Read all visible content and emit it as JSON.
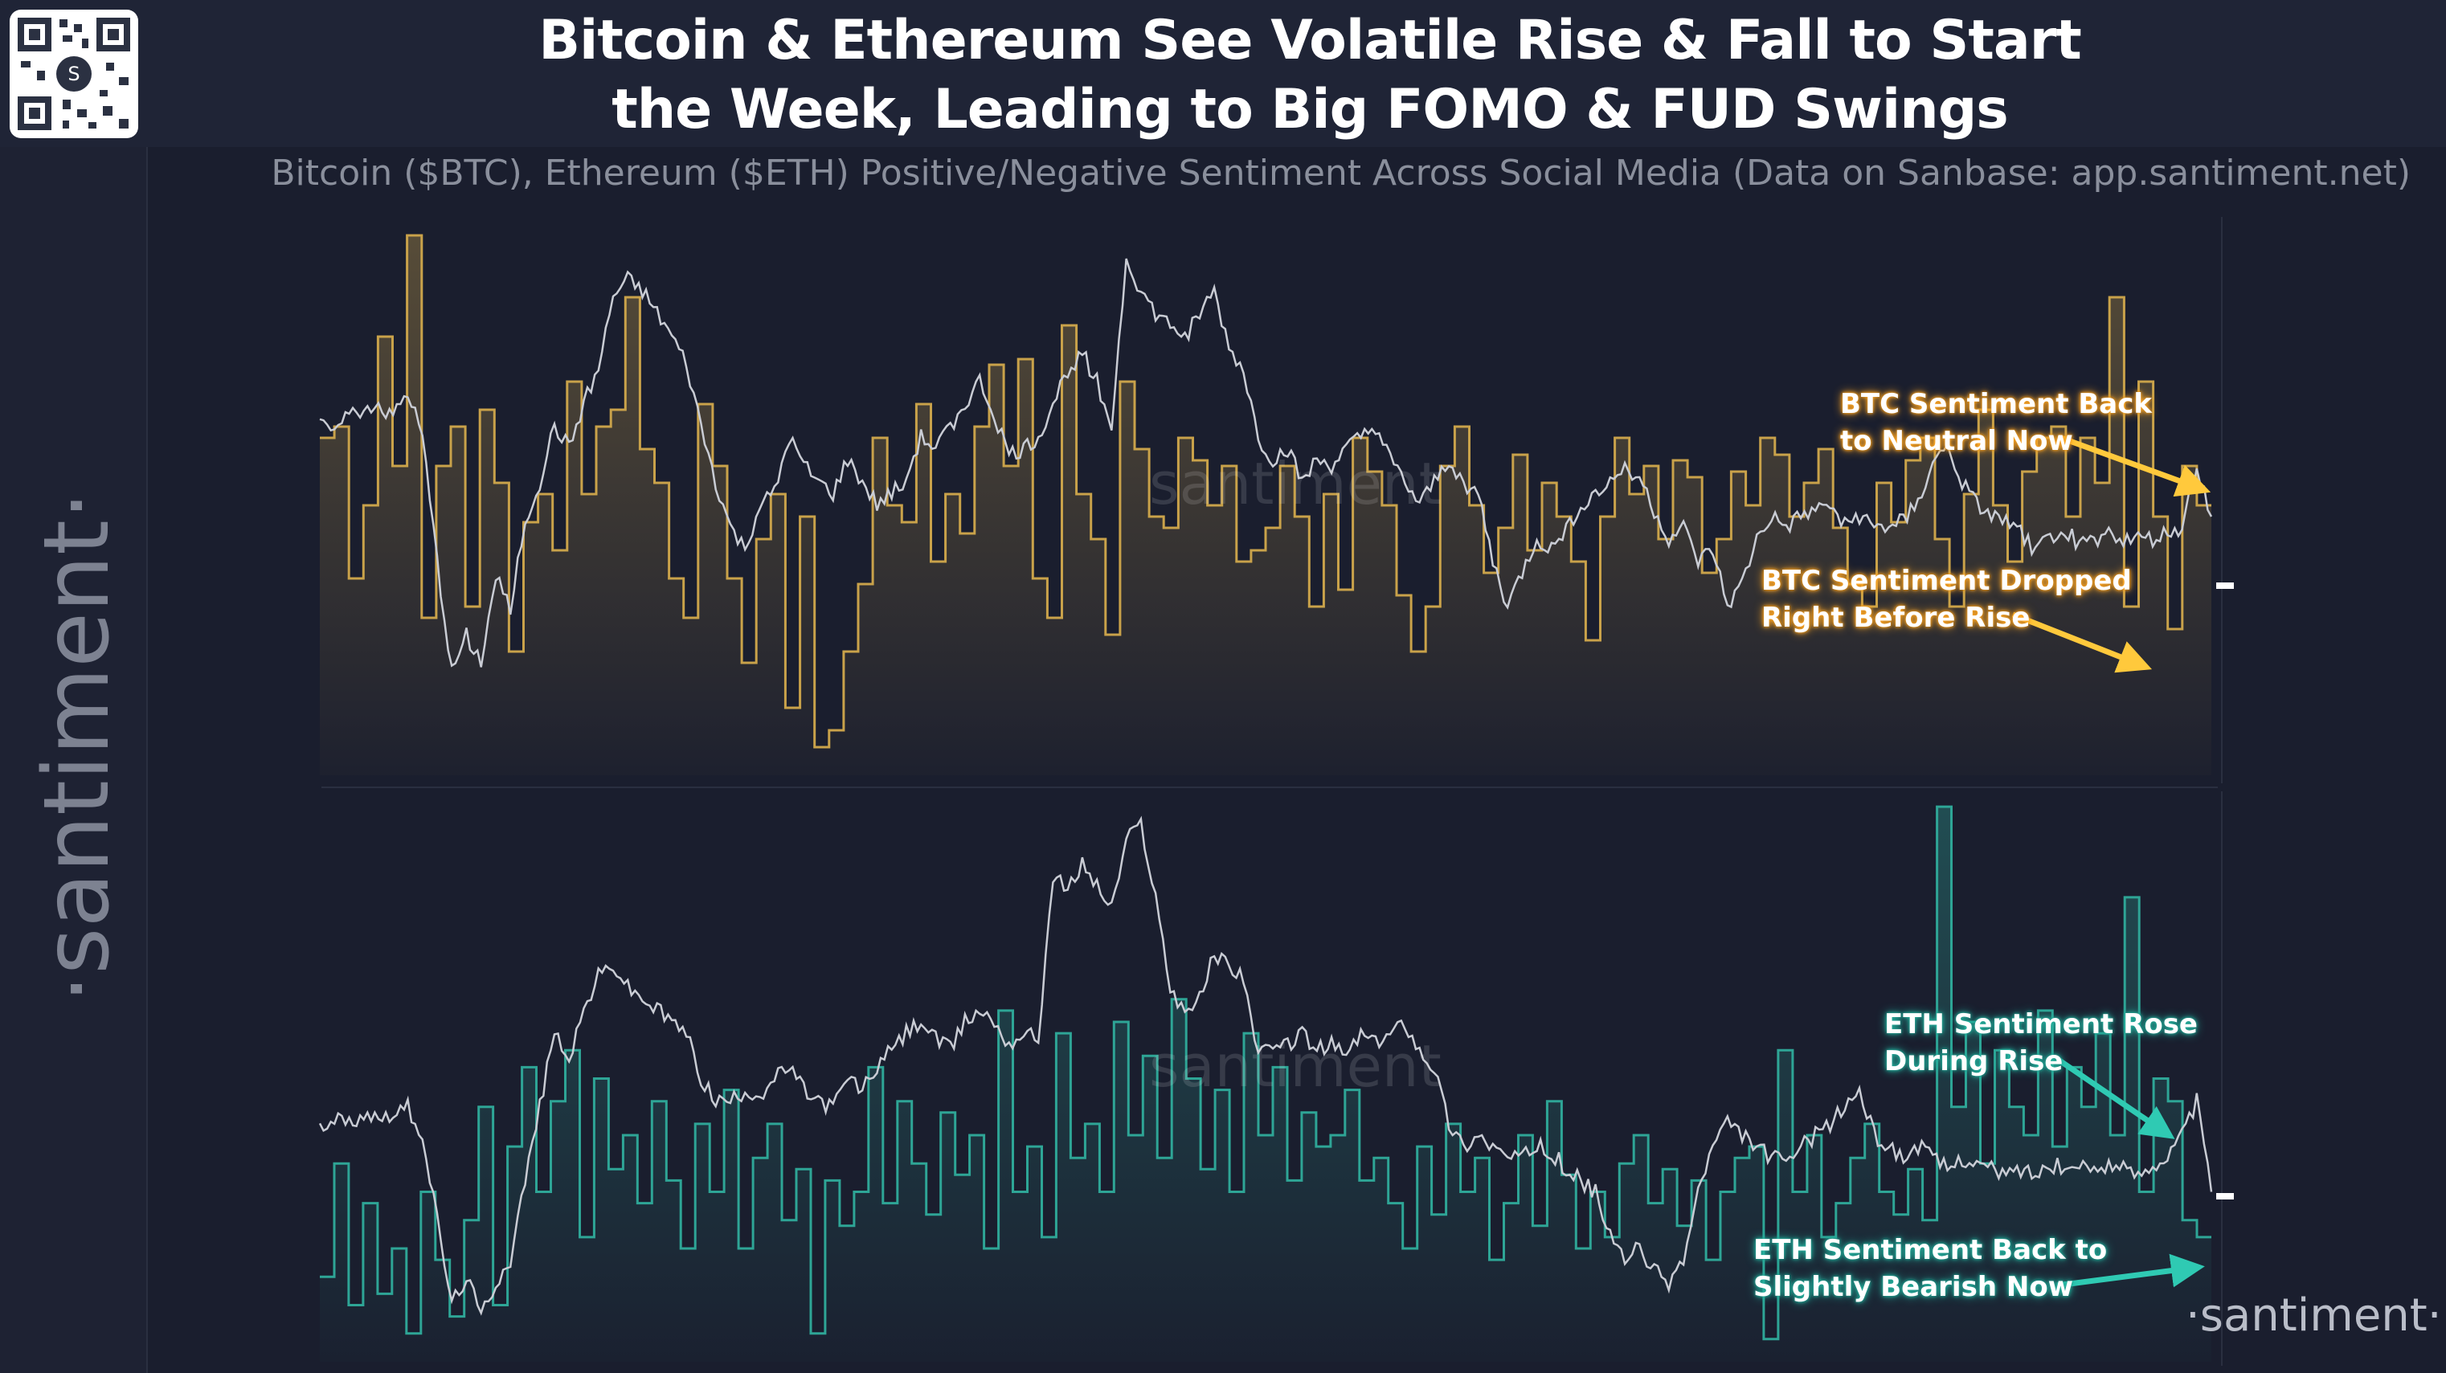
{
  "header": {
    "title": "Bitcoin & Ethereum See Volatile Rise & Fall to Start\nthe Week, Leading to Big FOMO & FUD Swings",
    "subtitle": "Bitcoin ($BTC), Ethereum ($ETH) Positive/Negative Sentiment Across Social Media (Data on Sanbase: app.santiment.net)"
  },
  "branding": {
    "side_text": "·santiment·",
    "corner_text": "·santiment·",
    "watermark": "santiment",
    "qr_center": "S"
  },
  "annotations": {
    "btc_neutral": "BTC Sentiment Back\nto Neutral Now",
    "btc_dropped": "BTC Sentiment Dropped\nRight Before Rise",
    "eth_rose": "ETH Sentiment Rose\nDuring Rise",
    "eth_bearish": "ETH Sentiment Back to\nSlightly Bearish Now"
  },
  "colors": {
    "background": "#1a1e2e",
    "btc_sentiment": "#c9a24a",
    "eth_sentiment": "#2ea596",
    "price_line": "#c9ccd4",
    "btc_arrow": "#ffc93c",
    "eth_arrow": "#2fcab3"
  },
  "chart_data": [
    {
      "type": "line",
      "title": "",
      "series": [
        {
          "values": [
            0.6,
            0.62,
            0.35,
            0.48,
            0.78,
            0.55,
            0.96,
            0.28,
            0.55,
            0.62,
            0.3,
            0.65,
            0.52,
            0.22,
            0.45,
            0.5,
            0.4,
            0.7,
            0.5,
            0.62,
            0.65,
            0.85,
            0.58,
            0.52,
            0.35,
            0.28,
            0.66,
            0.55,
            0.35,
            0.2,
            0.42,
            0.5,
            0.12,
            0.46,
            0.05,
            0.08,
            0.22,
            0.34,
            0.6,
            0.48,
            0.45,
            0.66,
            0.38,
            0.5,
            0.43,
            0.62,
            0.73,
            0.55,
            0.74,
            0.35,
            0.28,
            0.8,
            0.5,
            0.42,
            0.25,
            0.7,
            0.58,
            0.46,
            0.44,
            0.6,
            0.56,
            0.48,
            0.55,
            0.38,
            0.4,
            0.44,
            0.55,
            0.46,
            0.3,
            0.5,
            0.33,
            0.6,
            0.54,
            0.48,
            0.32,
            0.22,
            0.3,
            0.55,
            0.62,
            0.48,
            0.36,
            0.44,
            0.57,
            0.4,
            0.52,
            0.46,
            0.38,
            0.24,
            0.46,
            0.6,
            0.5,
            0.55,
            0.42,
            0.56,
            0.53,
            0.36,
            0.42,
            0.54,
            0.48,
            0.6,
            0.57,
            0.46,
            0.52,
            0.58,
            0.44,
            0.34,
            0.3,
            0.52,
            0.45,
            0.56,
            0.6,
            0.42,
            0.3,
            0.5,
            0.65,
            0.48,
            0.38,
            0.54,
            0.6,
            0.62,
            0.46,
            0.6,
            0.52,
            0.85,
            0.3,
            0.7,
            0.46,
            0.26,
            0.55,
            0.48
          ]
        },
        {
          "values": [
            0.62,
            0.63,
            0.64,
            0.65,
            0.66,
            0.64,
            0.68,
            0.6,
            0.38,
            0.18,
            0.25,
            0.2,
            0.35,
            0.3,
            0.45,
            0.52,
            0.62,
            0.58,
            0.66,
            0.72,
            0.85,
            0.88,
            0.86,
            0.82,
            0.78,
            0.73,
            0.62,
            0.52,
            0.44,
            0.4,
            0.48,
            0.5,
            0.6,
            0.55,
            0.52,
            0.5,
            0.56,
            0.52,
            0.48,
            0.5,
            0.53,
            0.6,
            0.58,
            0.62,
            0.66,
            0.7,
            0.64,
            0.57,
            0.58,
            0.6,
            0.66,
            0.72,
            0.75,
            0.7,
            0.62,
            0.92,
            0.86,
            0.82,
            0.8,
            0.78,
            0.82,
            0.86,
            0.76,
            0.72,
            0.6,
            0.56,
            0.58,
            0.52,
            0.56,
            0.55,
            0.58,
            0.6,
            0.62,
            0.56,
            0.52,
            0.48,
            0.52,
            0.56,
            0.52,
            0.5,
            0.38,
            0.3,
            0.36,
            0.42,
            0.4,
            0.44,
            0.48,
            0.5,
            0.52,
            0.55,
            0.53,
            0.47,
            0.42,
            0.44,
            0.38,
            0.4,
            0.3,
            0.34,
            0.42,
            0.46,
            0.44,
            0.46,
            0.47,
            0.48,
            0.45,
            0.46,
            0.44,
            0.44,
            0.46,
            0.48,
            0.56,
            0.58,
            0.52,
            0.48,
            0.46,
            0.45,
            0.43,
            0.4,
            0.42,
            0.44,
            0.41,
            0.42,
            0.43,
            0.42,
            0.42,
            0.42,
            0.43,
            0.44,
            0.55,
            0.46
          ]
        }
      ]
    },
    {
      "type": "line",
      "title": "",
      "series": [
        {
          "values": [
            0.15,
            0.35,
            0.1,
            0.28,
            0.12,
            0.2,
            0.05,
            0.3,
            0.18,
            0.08,
            0.25,
            0.45,
            0.1,
            0.38,
            0.52,
            0.3,
            0.46,
            0.55,
            0.22,
            0.5,
            0.34,
            0.4,
            0.28,
            0.46,
            0.32,
            0.2,
            0.42,
            0.3,
            0.48,
            0.2,
            0.36,
            0.42,
            0.25,
            0.34,
            0.05,
            0.32,
            0.24,
            0.3,
            0.52,
            0.28,
            0.46,
            0.35,
            0.26,
            0.44,
            0.33,
            0.4,
            0.2,
            0.62,
            0.3,
            0.38,
            0.22,
            0.58,
            0.36,
            0.42,
            0.3,
            0.6,
            0.4,
            0.54,
            0.36,
            0.64,
            0.5,
            0.34,
            0.48,
            0.3,
            0.58,
            0.4,
            0.52,
            0.32,
            0.44,
            0.38,
            0.4,
            0.48,
            0.32,
            0.36,
            0.28,
            0.2,
            0.38,
            0.26,
            0.42,
            0.3,
            0.36,
            0.18,
            0.28,
            0.4,
            0.24,
            0.46,
            0.33,
            0.2,
            0.3,
            0.22,
            0.35,
            0.4,
            0.28,
            0.34,
            0.24,
            0.32,
            0.18,
            0.3,
            0.36,
            0.38,
            0.04,
            0.55,
            0.3,
            0.4,
            0.22,
            0.28,
            0.36,
            0.42,
            0.3,
            0.26,
            0.34,
            0.25,
            0.98,
            0.45,
            0.6,
            0.35,
            0.55,
            0.45,
            0.4,
            0.62,
            0.38,
            0.52,
            0.45,
            0.58,
            0.4,
            0.82,
            0.3,
            0.5,
            0.46,
            0.25,
            0.22
          ]
        },
        {
          "values": [
            0.42,
            0.43,
            0.42,
            0.44,
            0.43,
            0.44,
            0.45,
            0.4,
            0.25,
            0.1,
            0.15,
            0.08,
            0.14,
            0.18,
            0.32,
            0.45,
            0.58,
            0.54,
            0.62,
            0.68,
            0.7,
            0.66,
            0.64,
            0.62,
            0.6,
            0.58,
            0.5,
            0.46,
            0.46,
            0.48,
            0.47,
            0.5,
            0.52,
            0.48,
            0.46,
            0.45,
            0.5,
            0.48,
            0.52,
            0.55,
            0.58,
            0.6,
            0.57,
            0.55,
            0.6,
            0.62,
            0.6,
            0.56,
            0.58,
            0.57,
            0.86,
            0.83,
            0.88,
            0.84,
            0.8,
            0.92,
            0.95,
            0.82,
            0.66,
            0.62,
            0.64,
            0.72,
            0.7,
            0.68,
            0.54,
            0.55,
            0.56,
            0.58,
            0.55,
            0.56,
            0.54,
            0.58,
            0.56,
            0.58,
            0.6,
            0.55,
            0.52,
            0.42,
            0.38,
            0.4,
            0.38,
            0.36,
            0.36,
            0.38,
            0.37,
            0.34,
            0.32,
            0.3,
            0.22,
            0.18,
            0.2,
            0.16,
            0.14,
            0.18,
            0.3,
            0.38,
            0.42,
            0.4,
            0.38,
            0.36,
            0.35,
            0.38,
            0.4,
            0.42,
            0.45,
            0.48,
            0.4,
            0.38,
            0.36,
            0.38,
            0.36,
            0.34,
            0.36,
            0.35,
            0.34,
            0.33,
            0.34,
            0.33,
            0.35,
            0.34,
            0.34,
            0.34,
            0.35,
            0.34,
            0.33,
            0.35,
            0.36,
            0.4,
            0.46,
            0.3
          ]
        }
      ]
    }
  ]
}
